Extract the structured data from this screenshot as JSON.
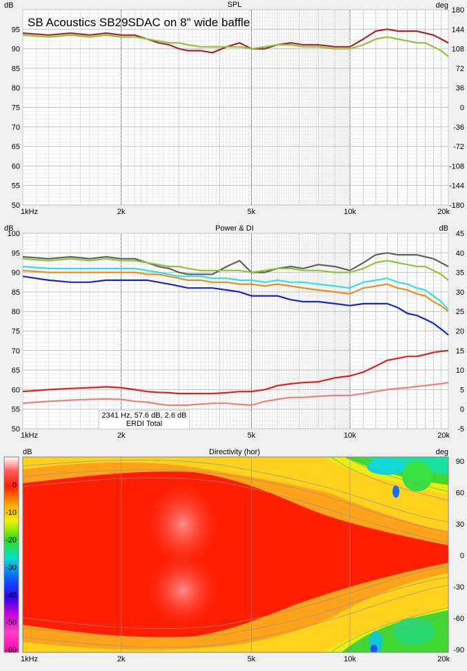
{
  "panels": {
    "spl": {
      "title": "SPL",
      "overlay_title": "SB Acoustics SB29SDAC on 8\" wide baffle",
      "left_unit": "dB",
      "right_unit": "deg",
      "left_ticks": [
        "95",
        "90",
        "85",
        "80",
        "75",
        "70",
        "65",
        "60",
        "55",
        "50"
      ],
      "right_ticks": [
        "180",
        "144",
        "108",
        "72",
        "36",
        "0",
        "-36",
        "-72",
        "-108",
        "-144",
        "-180"
      ],
      "x_ticks": [
        "1kHz",
        "2k",
        "5k",
        "10k",
        "20k"
      ]
    },
    "power": {
      "title": "Power & DI",
      "left_unit": "dB",
      "right_unit": "dB",
      "left_ticks": [
        "100",
        "95",
        "90",
        "85",
        "80",
        "75",
        "70",
        "65",
        "60",
        "55",
        "50"
      ],
      "right_ticks": [
        "45",
        "40",
        "35",
        "30",
        "25",
        "20",
        "15",
        "10",
        "5",
        "0",
        "-5"
      ],
      "x_ticks": [
        "1kHz",
        "2k",
        "5k",
        "10k",
        "20k"
      ],
      "cursor_line1": "2341 Hz, 57.6 dB, 2.6 dB",
      "cursor_line2": "ERDI Total"
    },
    "directivity": {
      "title": "Directivity (hor)",
      "left_unit": "dB",
      "right_unit": "deg",
      "scale_ticks": [
        "0",
        "-10",
        "-20",
        "-30",
        "-40",
        "-50",
        "-60"
      ],
      "right_ticks": [
        "90",
        "60",
        "30",
        "0",
        "-30",
        "-60",
        "-90"
      ],
      "x_ticks": [
        "1kHz",
        "2k",
        "5k",
        "10k",
        "20k"
      ]
    }
  },
  "chart_data": [
    {
      "type": "line",
      "title": "SPL",
      "x_scale": "log",
      "xlim": [
        1000,
        20000
      ],
      "ylim": [
        50,
        100
      ],
      "y2lim": [
        -180,
        180
      ],
      "series": [
        {
          "color": "#a0282c",
          "x": [
            1000,
            1200,
            1400,
            1600,
            1800,
            2000,
            2200,
            2400,
            2600,
            2800,
            3000,
            3200,
            3500,
            3800,
            4200,
            4600,
            5000,
            5500,
            6000,
            6600,
            7200,
            8000,
            9000,
            10000,
            11000,
            12000,
            13000,
            14000,
            15000,
            16000,
            17000,
            18000,
            19000,
            20000
          ],
          "y": [
            94,
            93.5,
            94,
            93.5,
            94,
            93.5,
            93.5,
            92.5,
            91.5,
            91,
            90,
            89.5,
            89.5,
            89,
            90.5,
            91.5,
            90,
            90,
            91,
            91.5,
            91,
            91,
            90.5,
            90.5,
            92.5,
            94.5,
            95,
            94.5,
            94.5,
            94.5,
            94,
            93.5,
            92.5,
            91.5
          ]
        },
        {
          "color": "#96c03c",
          "x": [
            1000,
            1200,
            1400,
            1600,
            1800,
            2000,
            2200,
            2400,
            2600,
            2800,
            3000,
            3200,
            3500,
            3800,
            4200,
            4600,
            5000,
            5500,
            6000,
            6600,
            7200,
            8000,
            9000,
            10000,
            11000,
            12000,
            13000,
            14000,
            15000,
            16000,
            17000,
            18000,
            19000,
            20000
          ],
          "y": [
            93.5,
            93,
            93.5,
            93,
            93.5,
            93,
            93,
            92.5,
            92,
            91.5,
            91.5,
            91,
            90.5,
            90.5,
            90.5,
            90.5,
            90,
            90.5,
            91,
            91,
            90.5,
            90.5,
            90,
            90,
            91,
            92.5,
            93,
            92.5,
            92,
            91.5,
            91.5,
            90.5,
            89.5,
            88
          ]
        }
      ]
    },
    {
      "type": "line",
      "title": "Power & DI",
      "x_scale": "log",
      "xlim": [
        1000,
        20000
      ],
      "ylim": [
        50,
        100
      ],
      "y2lim": [
        -5,
        45
      ],
      "series": [
        {
          "color": "#606060",
          "x": [
            1000,
            1200,
            1400,
            1600,
            1800,
            2000,
            2200,
            2400,
            2600,
            2800,
            3000,
            3200,
            3500,
            3800,
            4200,
            4600,
            5000,
            5500,
            6000,
            6600,
            7200,
            8000,
            9000,
            10000,
            11000,
            12000,
            13000,
            14000,
            15000,
            16000,
            17000,
            18000,
            19000,
            20000
          ],
          "y": [
            94,
            93.5,
            94,
            93.5,
            94,
            93.5,
            93.5,
            92.5,
            91.5,
            91,
            90,
            89.5,
            89.5,
            89.5,
            91.5,
            93,
            90,
            90,
            91,
            91.5,
            91,
            92,
            91.5,
            90.5,
            92.5,
            94.5,
            95,
            94.5,
            94.5,
            94.5,
            94,
            93.5,
            92.5,
            91.5
          ],
          "axis": "left"
        },
        {
          "color": "#96c03c",
          "x": [
            1000,
            1200,
            1400,
            1600,
            1800,
            2000,
            2200,
            2400,
            2600,
            2800,
            3000,
            3200,
            3500,
            3800,
            4200,
            4600,
            5000,
            5500,
            6000,
            6600,
            7200,
            8000,
            9000,
            10000,
            11000,
            12000,
            13000,
            14000,
            15000,
            16000,
            17000,
            18000,
            19000,
            20000
          ],
          "y": [
            93.5,
            93,
            93.5,
            93,
            93.5,
            93,
            93,
            92.5,
            92,
            91.5,
            91.5,
            91,
            90.5,
            90.5,
            90.5,
            90.5,
            90,
            90.5,
            91,
            91,
            90.5,
            90.5,
            90,
            90,
            91,
            92.5,
            93,
            92.5,
            92,
            91.5,
            91.5,
            90.5,
            89.5,
            88
          ],
          "axis": "left"
        },
        {
          "color": "#33e0e0",
          "x": [
            1000,
            1200,
            1400,
            1600,
            1800,
            2000,
            2200,
            2400,
            2600,
            2800,
            3000,
            3200,
            3500,
            3800,
            4200,
            4600,
            5000,
            5500,
            6000,
            6600,
            7200,
            8000,
            9000,
            10000,
            11000,
            12000,
            13000,
            14000,
            15000,
            16000,
            17000,
            18000,
            19000,
            20000
          ],
          "y": [
            91.5,
            91,
            91,
            91,
            91,
            91,
            91,
            90.5,
            90,
            89.5,
            89,
            89,
            89,
            88.5,
            88.5,
            88,
            88,
            87.5,
            88,
            87.5,
            87.5,
            87,
            86.5,
            86,
            87.5,
            88,
            88.5,
            87.5,
            87,
            86,
            85.5,
            84,
            82.5,
            80.5
          ],
          "axis": "left"
        },
        {
          "color": "#ec8c1e",
          "x": [
            1000,
            1200,
            1400,
            1600,
            1800,
            2000,
            2200,
            2400,
            2600,
            2800,
            3000,
            3200,
            3500,
            3800,
            4200,
            4600,
            5000,
            5500,
            6000,
            6600,
            7200,
            8000,
            9000,
            10000,
            11000,
            12000,
            13000,
            14000,
            15000,
            16000,
            17000,
            18000,
            19000,
            20000
          ],
          "y": [
            90.5,
            90,
            90,
            90,
            90,
            90,
            90,
            89.5,
            89.5,
            89,
            88.5,
            88,
            88,
            87.5,
            87.5,
            87,
            87,
            86.5,
            87,
            86.5,
            86,
            85.5,
            85,
            84.5,
            86,
            86.5,
            87,
            86,
            85.5,
            84.5,
            84,
            82.5,
            81.5,
            80
          ],
          "axis": "left"
        },
        {
          "color": "#1c24c8",
          "x": [
            1000,
            1200,
            1400,
            1600,
            1800,
            2000,
            2200,
            2400,
            2600,
            2800,
            3000,
            3200,
            3500,
            3800,
            4200,
            4600,
            5000,
            5500,
            6000,
            6600,
            7200,
            8000,
            9000,
            10000,
            11000,
            12000,
            13000,
            14000,
            15000,
            16000,
            17000,
            18000,
            19000,
            20000
          ],
          "y": [
            89,
            88,
            87.5,
            87.5,
            88,
            88,
            88,
            88,
            87.5,
            87,
            86.5,
            86,
            86,
            86,
            85.5,
            85,
            84,
            84,
            84,
            83,
            82.5,
            82.5,
            82,
            81.5,
            82,
            82,
            82,
            81,
            79.5,
            79,
            78,
            77,
            75.5,
            74
          ],
          "axis": "left"
        },
        {
          "color": "#e02020",
          "x": [
            1000,
            1200,
            1400,
            1600,
            1800,
            2000,
            2200,
            2400,
            2600,
            2800,
            3000,
            3200,
            3500,
            3800,
            4200,
            4600,
            5000,
            5500,
            6000,
            6600,
            7200,
            8000,
            9000,
            10000,
            11000,
            12000,
            13000,
            14000,
            15000,
            16000,
            17000,
            18000,
            19000,
            20000
          ],
          "y": [
            4.5,
            5,
            5.3,
            5.5,
            5.7,
            5.5,
            5,
            4.5,
            4.3,
            4.2,
            4,
            4,
            4,
            4,
            4.2,
            4.5,
            4.5,
            5,
            6,
            6.5,
            6.8,
            7,
            8,
            8.5,
            9.5,
            11,
            12.5,
            13,
            13.5,
            13.5,
            14,
            14.5,
            14.8,
            15
          ],
          "axis": "right"
        },
        {
          "color": "#f08070",
          "x": [
            1000,
            1200,
            1400,
            1600,
            1800,
            2000,
            2200,
            2400,
            2600,
            2800,
            3000,
            3200,
            3500,
            3800,
            4200,
            4600,
            5000,
            5500,
            6000,
            6600,
            7200,
            8000,
            9000,
            10000,
            11000,
            12000,
            13000,
            14000,
            15000,
            16000,
            17000,
            18000,
            19000,
            20000
          ],
          "y": [
            1.5,
            2,
            2.3,
            2.5,
            2.6,
            2.5,
            2,
            1.8,
            1.3,
            1,
            1,
            1,
            1.3,
            1.5,
            1.5,
            1.2,
            1,
            2,
            2.5,
            3,
            3,
            3.3,
            3.5,
            3.5,
            4,
            4.5,
            5,
            5.3,
            5.5,
            5.8,
            6,
            6.3,
            6.5,
            6.8
          ],
          "axis": "right"
        }
      ]
    },
    {
      "type": "heatmap",
      "title": "Directivity (hor)",
      "x_scale": "log",
      "xlim": [
        1000,
        20000
      ],
      "ylim": [
        -90,
        90
      ],
      "zlim": [
        -60,
        10
      ],
      "contour_step_db": 3
    }
  ]
}
